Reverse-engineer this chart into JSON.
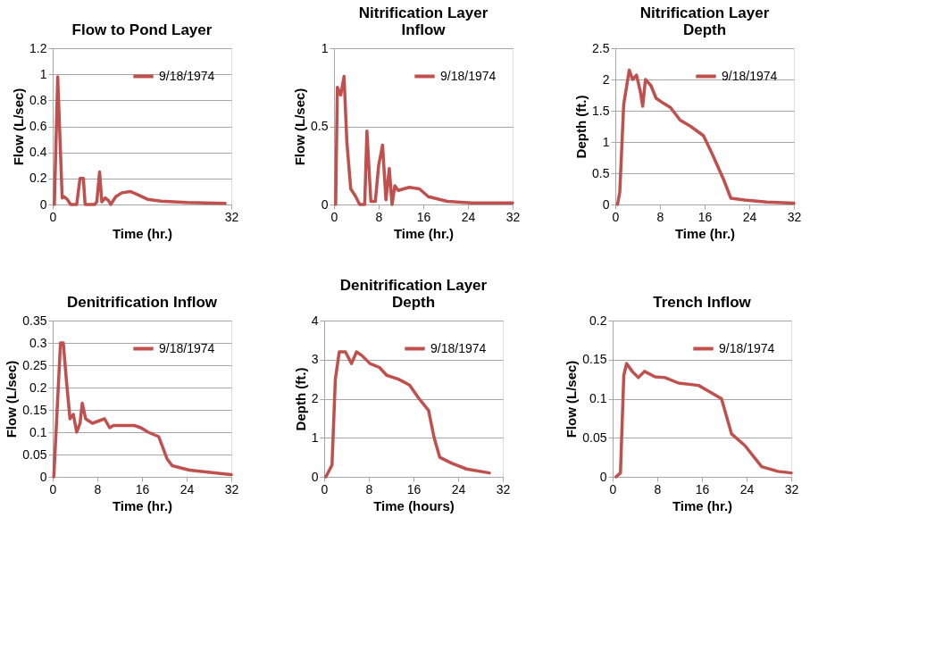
{
  "chart_data": [
    {
      "type": "line",
      "title": "Flow to Pond Layer",
      "xlabel": "Time (hr.)",
      "ylabel": "Flow (L/sec)",
      "xlim": [
        0,
        32
      ],
      "xticks": [
        0,
        32
      ],
      "ylim": [
        0,
        1.2
      ],
      "yticks": [
        0,
        0.2,
        0.4,
        0.6,
        0.8,
        1,
        1.2
      ],
      "grid": "y",
      "legend": "top right",
      "series": [
        {
          "name": "9/18/1974",
          "color": "#c0504d",
          "x": [
            0.3,
            0.9,
            1.7,
            2.0,
            2.6,
            3.2,
            4.3,
            4.9,
            5.5,
            5.8,
            7.5,
            7.9,
            8.4,
            8.8,
            9.4,
            10.0,
            10.4,
            11.3,
            12.4,
            13.9,
            15.0,
            17.0,
            19.4,
            24.0,
            30.9
          ],
          "values": [
            0,
            0.98,
            0.05,
            0.06,
            0.04,
            0,
            0,
            0.2,
            0.2,
            0,
            0,
            0.02,
            0.25,
            0.02,
            0.05,
            0.03,
            0,
            0.06,
            0.09,
            0.1,
            0.08,
            0.04,
            0.025,
            0.015,
            0.008
          ]
        }
      ]
    },
    {
      "type": "line",
      "title": "Nitrification Layer Inflow",
      "xlabel": "Time (hr.)",
      "ylabel": "Flow (L/sec)",
      "xlim": [
        0,
        32
      ],
      "xticks": [
        0,
        8,
        16,
        24,
        32
      ],
      "ylim": [
        0,
        1
      ],
      "yticks": [
        0,
        0.5,
        1
      ],
      "grid": "y",
      "legend": "top right",
      "series": [
        {
          "name": "9/18/1974",
          "color": "#c0504d",
          "x": [
            0.3,
            0.6,
            1.2,
            1.8,
            2.3,
            3.0,
            3.9,
            4.6,
            5.5,
            5.9,
            6.6,
            7.4,
            8.0,
            8.7,
            9.3,
            9.9,
            10.4,
            10.9,
            11.5,
            13.5,
            15.3,
            16.9,
            20.3,
            24.7,
            32.0
          ],
          "values": [
            0,
            0.75,
            0.7,
            0.82,
            0.4,
            0.1,
            0.05,
            0,
            0,
            0.47,
            0.02,
            0.02,
            0.25,
            0.38,
            0.03,
            0.23,
            0,
            0.12,
            0.09,
            0.11,
            0.1,
            0.05,
            0.02,
            0.01,
            0.01
          ]
        }
      ]
    },
    {
      "type": "line",
      "title": "Nitrification Layer Depth",
      "xlabel": "Time (hr.)",
      "ylabel": "Depth (ft.)",
      "xlim": [
        0,
        32
      ],
      "xticks": [
        0,
        8,
        16,
        24,
        32
      ],
      "ylim": [
        0,
        2.5
      ],
      "yticks": [
        0,
        0.5,
        1,
        1.5,
        2,
        2.5
      ],
      "grid": "y",
      "legend": "top right",
      "series": [
        {
          "name": "9/18/1974",
          "color": "#c0504d",
          "x": [
            0.4,
            0.8,
            1.5,
            2.5,
            3.1,
            3.8,
            4.5,
            4.9,
            5.4,
            6.4,
            7.3,
            8.6,
            9.9,
            11.6,
            13.5,
            15.8,
            17.4,
            19.4,
            20.7,
            23.2,
            27.1,
            32.0
          ],
          "values": [
            0,
            0.2,
            1.6,
            2.15,
            2.0,
            2.07,
            1.8,
            1.57,
            2.0,
            1.9,
            1.7,
            1.62,
            1.55,
            1.35,
            1.25,
            1.1,
            0.8,
            0.4,
            0.1,
            0.07,
            0.04,
            0.02
          ]
        }
      ]
    },
    {
      "type": "line",
      "title": "Denitrification Inflow",
      "xlabel": "Time (hr.)",
      "ylabel": "Flow (L/sec)",
      "xlim": [
        0,
        32
      ],
      "xticks": [
        0,
        8,
        16,
        24,
        32
      ],
      "ylim": [
        0,
        0.35
      ],
      "yticks": [
        0,
        0.05,
        0.1,
        0.15,
        0.2,
        0.25,
        0.3,
        0.35
      ],
      "grid": "y",
      "legend": "top right",
      "series": [
        {
          "name": "9/18/1974",
          "color": "#c0504d",
          "x": [
            0.2,
            1.4,
            1.9,
            2.5,
            3.1,
            3.7,
            4.3,
            4.9,
            5.3,
            5.9,
            7.1,
            9.3,
            10.2,
            10.9,
            14.6,
            15.8,
            17.1,
            19.0,
            20.5,
            21.4,
            24.5,
            32.0
          ],
          "values": [
            0,
            0.3,
            0.3,
            0.21,
            0.13,
            0.14,
            0.1,
            0.12,
            0.165,
            0.13,
            0.12,
            0.13,
            0.11,
            0.115,
            0.115,
            0.11,
            0.1,
            0.09,
            0.04,
            0.025,
            0.015,
            0.005
          ]
        }
      ]
    },
    {
      "type": "line",
      "title": "Denitrification Layer Depth",
      "xlabel": "Time (hours)",
      "ylabel": "Depth (ft.)",
      "xlim": [
        0,
        32
      ],
      "xticks": [
        0,
        8,
        16,
        24,
        32
      ],
      "ylim": [
        0,
        4
      ],
      "yticks": [
        0,
        1,
        2,
        3,
        4
      ],
      "grid": "y",
      "legend": "top right",
      "series": [
        {
          "name": "9/18/1974",
          "color": "#c0504d",
          "x": [
            0.3,
            1.4,
            2.0,
            2.7,
            3.8,
            4.9,
            5.8,
            6.8,
            8.2,
            9.9,
            11.2,
            13.3,
            15.3,
            17.0,
            18.7,
            19.7,
            20.7,
            22.8,
            25.5,
            29.6
          ],
          "values": [
            0,
            0.3,
            2.5,
            3.2,
            3.2,
            2.9,
            3.2,
            3.1,
            2.9,
            2.8,
            2.6,
            2.5,
            2.35,
            2.0,
            1.7,
            1.0,
            0.5,
            0.35,
            0.2,
            0.1
          ]
        }
      ]
    },
    {
      "type": "line",
      "title": "Trench Inflow",
      "xlabel": "Time (hr.)",
      "ylabel": "Flow (L/sec)",
      "xlim": [
        0,
        32
      ],
      "xticks": [
        0,
        8,
        16,
        24,
        32
      ],
      "ylim": [
        0,
        0.2
      ],
      "yticks": [
        0,
        0.05,
        0.1,
        0.15,
        0.2
      ],
      "grid": "y",
      "legend": "top right",
      "series": [
        {
          "name": "9/18/1974",
          "color": "#c0504d",
          "x": [
            0.6,
            1.4,
            2.0,
            2.5,
            3.5,
            4.6,
            5.7,
            7.6,
            9.4,
            11.8,
            15.4,
            17.1,
            19.5,
            21.3,
            23.7,
            26.7,
            29.6,
            32.0
          ],
          "values": [
            0,
            0.005,
            0.13,
            0.145,
            0.135,
            0.127,
            0.135,
            0.128,
            0.127,
            0.12,
            0.117,
            0.11,
            0.1,
            0.055,
            0.04,
            0.013,
            0.007,
            0.005
          ]
        }
      ]
    }
  ]
}
